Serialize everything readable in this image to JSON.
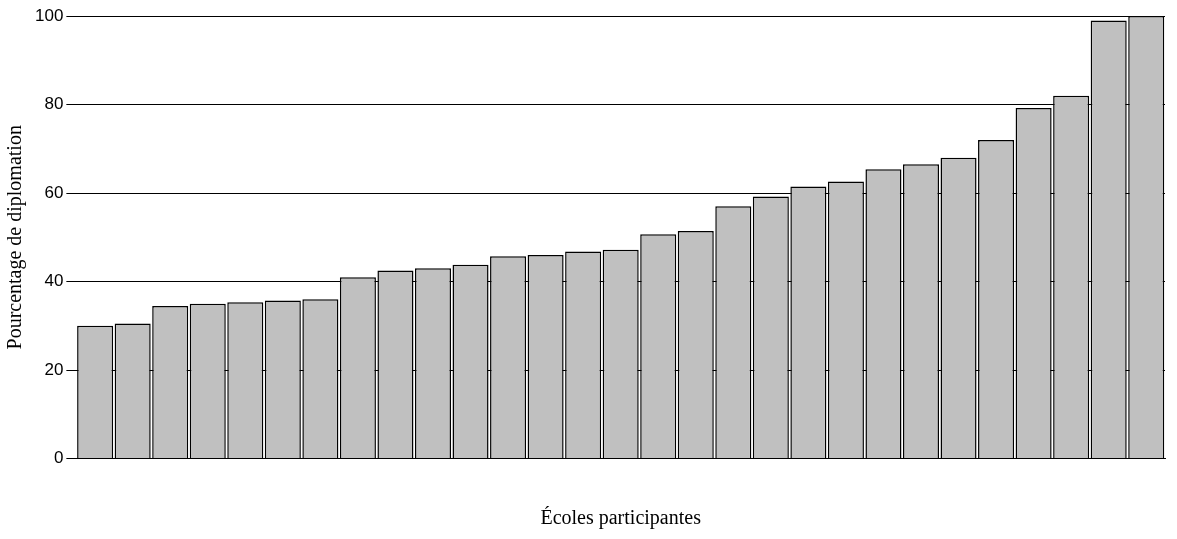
{
  "chart_data": {
    "type": "bar",
    "xlabel": "Écoles participantes",
    "ylabel": "Pourcentage de diplomation",
    "categories": [
      null,
      null,
      null,
      null,
      null,
      null,
      null,
      null,
      null,
      null,
      null,
      null,
      null,
      null,
      null,
      null,
      null,
      null,
      null,
      null,
      null,
      null,
      null,
      null,
      null,
      null,
      null,
      null,
      null
    ],
    "values": [
      30,
      30.5,
      34.5,
      35,
      35.3,
      35.7,
      36,
      41,
      42.5,
      43,
      43.8,
      45.7,
      46,
      46.8,
      47.2,
      50.7,
      51.4,
      57,
      59.2,
      61.5,
      62.6,
      65.4,
      66.5,
      68,
      72,
      79.2,
      82,
      99,
      100
    ],
    "color": "#c0c0c0",
    "ylim": [
      0,
      100
    ],
    "yticks": [
      0,
      20,
      40,
      60,
      80,
      100
    ],
    "grid": "y",
    "legend": false
  }
}
